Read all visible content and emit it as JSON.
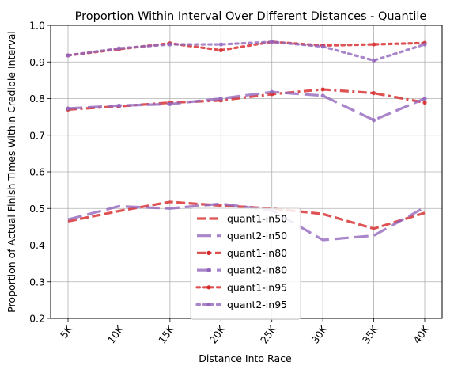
{
  "chart_data": {
    "type": "line",
    "title": "Proportion Within Interval Over Different Distances - Quantile",
    "xlabel": "Distance Into Race",
    "ylabel": "Proportion of Actual Finish Times Within Credible Interval",
    "categories": [
      "5K",
      "10K",
      "15K",
      "20K",
      "25K",
      "30K",
      "35K",
      "40K"
    ],
    "ylim": [
      0.2,
      1.0
    ],
    "yticks": [
      0.2,
      0.3,
      0.4,
      0.5,
      0.6,
      0.7,
      0.8,
      0.9,
      1.0
    ],
    "ytick_labels": [
      "0.2",
      "0.3",
      "0.4",
      "0.5",
      "0.6",
      "0.7",
      "0.8",
      "0.9",
      "1.0"
    ],
    "grid": true,
    "legend_position": "bottom-center",
    "series": [
      {
        "name": "quant1-in50",
        "color": "#d62728",
        "style": "dashed",
        "marker": false,
        "values": [
          0.465,
          0.493,
          0.518,
          0.508,
          0.5,
          0.485,
          0.445,
          0.488
        ]
      },
      {
        "name": "quant2-in50",
        "color": "#9467bd",
        "style": "longdash",
        "marker": false,
        "values": [
          0.47,
          0.506,
          0.5,
          0.513,
          0.495,
          0.414,
          0.426,
          0.503
        ]
      },
      {
        "name": "quant1-in80",
        "color": "#d62728",
        "style": "dashdot",
        "marker": true,
        "values": [
          0.77,
          0.779,
          0.789,
          0.795,
          0.812,
          0.825,
          0.815,
          0.789
        ]
      },
      {
        "name": "quant2-in80",
        "color": "#9467bd",
        "style": "longdash",
        "marker": true,
        "values": [
          0.773,
          0.781,
          0.785,
          0.8,
          0.818,
          0.808,
          0.741,
          0.8
        ]
      },
      {
        "name": "quant1-in95",
        "color": "#d62728",
        "style": "dotted",
        "marker": true,
        "values": [
          0.918,
          0.935,
          0.951,
          0.932,
          0.955,
          0.945,
          0.948,
          0.952
        ]
      },
      {
        "name": "quant2-in95",
        "color": "#9467bd",
        "style": "dotted",
        "marker": true,
        "values": [
          0.918,
          0.937,
          0.948,
          0.948,
          0.955,
          0.942,
          0.904,
          0.948
        ]
      }
    ]
  }
}
